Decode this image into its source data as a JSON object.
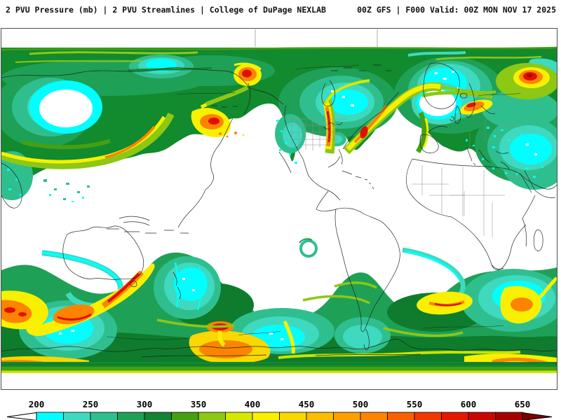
{
  "header": {
    "left": "2 PVU Pressure (mb) | 2 PVU Streamlines | College of DuPage NEXLAB",
    "right": "00Z GFS | F000 Valid: 00Z MON NOV 17 2025"
  },
  "map": {
    "field": "2 PVU Pressure (mb)",
    "overlay": "2 PVU Streamlines",
    "source": "College of DuPage NEXLAB",
    "model_run": "00Z GFS",
    "forecast_hour": "F000",
    "valid": "00Z MON NOV 17 2025"
  },
  "colorbar": {
    "unit_values": [
      200,
      250,
      300,
      350,
      400,
      450,
      500,
      550,
      600,
      650
    ],
    "segment_start": 200,
    "segment_step": 25,
    "segment_colors": [
      "#00FFFF",
      "#3FD9BF",
      "#2FBF8F",
      "#1FA057",
      "#128434",
      "#44A010",
      "#8CC814",
      "#D4E800",
      "#F8F000",
      "#F8D800",
      "#FCBC00",
      "#FCA000",
      "#FC8400",
      "#F86000",
      "#F03800",
      "#E41800",
      "#C80800",
      "#A40000"
    ],
    "under_color": "#FFFFFF",
    "over_color": "#7C0000"
  },
  "palette": {
    "background": "#FFFFFF",
    "frame": "#4d4d4d",
    "text": "#111111",
    "map_dark_green": "#128A2E",
    "map_mid_green": "#1FA057",
    "map_teal": "#2FBF8F",
    "map_turquoise": "#3FD9BF",
    "map_cyan": "#00FFFF",
    "map_yellow": "#F8F000",
    "map_orange": "#FC8400",
    "map_red": "#E01000",
    "coastline": "#1e1e1e"
  }
}
